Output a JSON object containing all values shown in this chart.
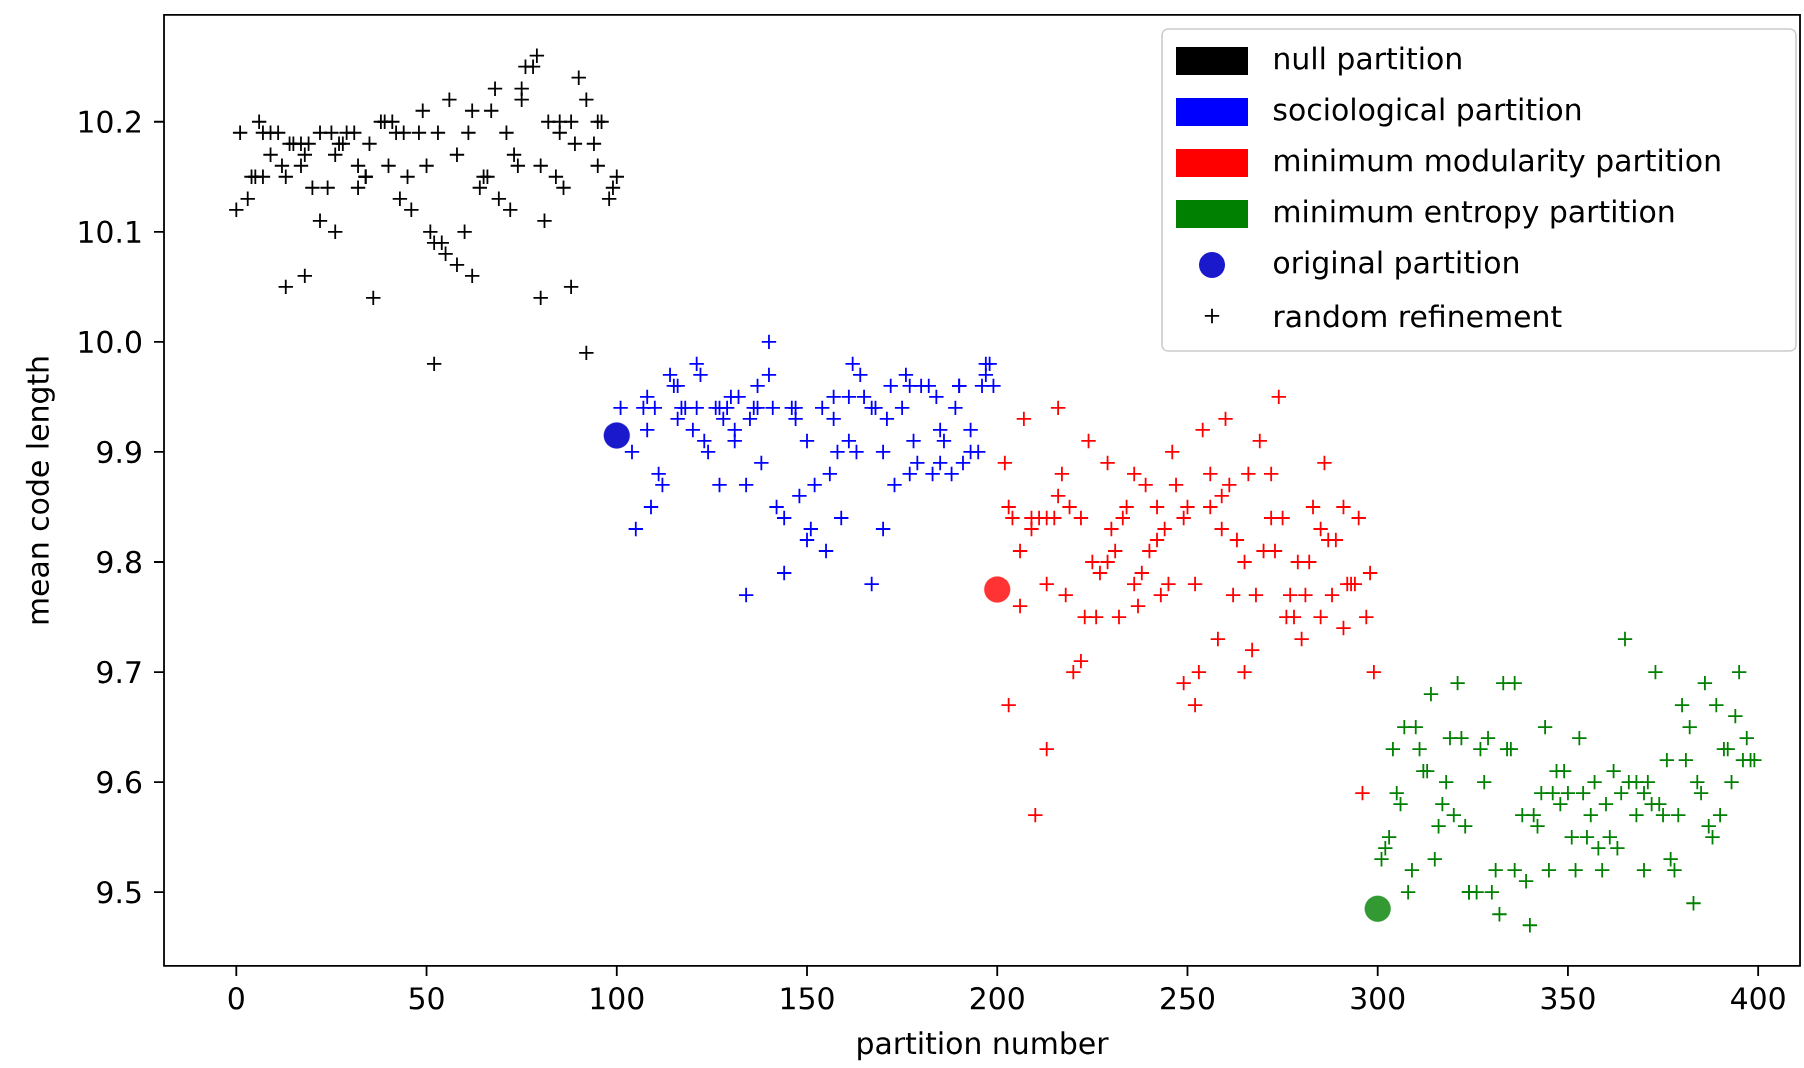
{
  "chart_data": {
    "type": "scatter",
    "xlabel": "partition number",
    "ylabel": "mean code length",
    "xlim": [
      -19,
      411
    ],
    "ylim": [
      9.433,
      10.297
    ],
    "xticks": [
      0,
      50,
      100,
      150,
      200,
      250,
      300,
      350,
      400
    ],
    "yticks": [
      9.5,
      9.6,
      9.7,
      9.8,
      9.9,
      {
        "value": 10.0,
        "label": "10.0"
      },
      10.1,
      10.2
    ],
    "legend": "top right",
    "series": [
      {
        "name": "null partition",
        "color": "#000000",
        "marker": "cross",
        "x": [
          1,
          0,
          3,
          4,
          5,
          6,
          7,
          7,
          9,
          9,
          11,
          12,
          13,
          14,
          15,
          17,
          17,
          18,
          19,
          20,
          22,
          24,
          22,
          26,
          25,
          26,
          27,
          28,
          29,
          31,
          32,
          32,
          34,
          34,
          35,
          36,
          38,
          39,
          40,
          41,
          42,
          43,
          44,
          45,
          46,
          48,
          49,
          50,
          51,
          52,
          54,
          55,
          58,
          53,
          56,
          58,
          60,
          61,
          62,
          62,
          13,
          18,
          52,
          64,
          65,
          66,
          67,
          68,
          69,
          71,
          72,
          73,
          74,
          75,
          75,
          76,
          79,
          78,
          80,
          81,
          82,
          84,
          85,
          85,
          86,
          88,
          88,
          89,
          90,
          92,
          92,
          94,
          95,
          95,
          96,
          98,
          99,
          100,
          80
        ],
        "values": [
          10.19,
          10.12,
          10.13,
          10.15,
          10.15,
          10.2,
          10.19,
          10.15,
          10.19,
          10.17,
          10.19,
          10.16,
          10.15,
          10.18,
          10.18,
          10.16,
          10.18,
          10.17,
          10.18,
          10.14,
          10.19,
          10.14,
          10.11,
          10.1,
          10.19,
          10.17,
          10.18,
          10.18,
          10.19,
          10.19,
          10.16,
          10.14,
          10.15,
          10.15,
          10.18,
          10.04,
          10.2,
          10.2,
          10.16,
          10.2,
          10.19,
          10.13,
          10.19,
          10.15,
          10.12,
          10.19,
          10.21,
          10.16,
          10.1,
          10.09,
          10.09,
          10.08,
          10.07,
          10.19,
          10.22,
          10.17,
          10.1,
          10.19,
          10.21,
          10.06,
          10.05,
          10.06,
          9.98,
          10.14,
          10.15,
          10.15,
          10.21,
          10.23,
          10.13,
          10.19,
          10.12,
          10.17,
          10.16,
          10.23,
          10.22,
          10.25,
          10.26,
          10.25,
          10.16,
          10.11,
          10.2,
          10.15,
          10.19,
          10.2,
          10.14,
          10.2,
          10.05,
          10.18,
          10.24,
          10.22,
          9.99,
          10.18,
          10.2,
          10.16,
          10.2,
          10.13,
          10.14,
          10.15,
          10.04
        ]
      },
      {
        "name": "sociological partition",
        "color": "#0000ff",
        "marker": "cross",
        "x": [
          101,
          104,
          105,
          107,
          108,
          108,
          109,
          110,
          111,
          112,
          114,
          115,
          116,
          116,
          117,
          118,
          120,
          121,
          121,
          122,
          123,
          124,
          126,
          127,
          127,
          128,
          129,
          130,
          131,
          131,
          132,
          134,
          134,
          135,
          136,
          137,
          137,
          138,
          140,
          140,
          141,
          142,
          144,
          144,
          146,
          147,
          147,
          148,
          150,
          150,
          151,
          152,
          154,
          155,
          156,
          157,
          157,
          158,
          159,
          161,
          161,
          162,
          163,
          164,
          165,
          167,
          167,
          168,
          170,
          170,
          171,
          172,
          173,
          175,
          176,
          177,
          177,
          178,
          179,
          180,
          182,
          183,
          184,
          185,
          185,
          186,
          188,
          189,
          190,
          190,
          191,
          193,
          193,
          195,
          196,
          197,
          197,
          198,
          199
        ],
        "values": [
          9.94,
          9.9,
          9.83,
          9.94,
          9.92,
          9.95,
          9.85,
          9.94,
          9.88,
          9.87,
          9.97,
          9.96,
          9.96,
          9.93,
          9.94,
          9.94,
          9.92,
          9.98,
          9.94,
          9.97,
          9.91,
          9.9,
          9.94,
          9.87,
          9.94,
          9.93,
          9.94,
          9.95,
          9.92,
          9.91,
          9.95,
          9.87,
          9.77,
          9.93,
          9.94,
          9.96,
          9.94,
          9.89,
          10.0,
          9.97,
          9.94,
          9.85,
          9.79,
          9.84,
          9.94,
          9.93,
          9.94,
          9.86,
          9.82,
          9.91,
          9.83,
          9.87,
          9.94,
          9.81,
          9.88,
          9.95,
          9.93,
          9.9,
          9.84,
          9.95,
          9.91,
          9.98,
          9.9,
          9.97,
          9.95,
          9.94,
          9.78,
          9.94,
          9.83,
          9.9,
          9.93,
          9.96,
          9.87,
          9.94,
          9.97,
          9.88,
          9.96,
          9.91,
          9.89,
          9.96,
          9.96,
          9.88,
          9.95,
          9.89,
          9.92,
          9.91,
          9.88,
          9.94,
          9.96,
          9.96,
          9.89,
          9.92,
          9.9,
          9.9,
          9.96,
          9.97,
          9.98,
          9.98,
          9.96
        ]
      },
      {
        "name": "minimum modularity partition",
        "color": "#ff0000",
        "marker": "cross",
        "x": [
          207,
          216,
          202,
          203,
          204,
          206,
          209,
          209,
          211,
          213,
          215,
          216,
          217,
          219,
          222,
          224,
          229,
          225,
          227,
          229,
          231,
          230,
          233,
          234,
          236,
          239,
          232,
          223,
          226,
          213,
          218,
          206,
          203,
          222,
          220,
          237,
          236,
          238,
          240,
          242,
          242,
          243,
          244,
          245,
          246,
          247,
          249,
          250,
          252,
          253,
          249,
          252,
          254,
          256,
          256,
          258,
          259,
          259,
          260,
          261,
          263,
          262,
          265,
          265,
          266,
          268,
          267,
          269,
          270,
          272,
          273,
          272,
          274,
          275,
          277,
          276,
          278,
          279,
          280,
          282,
          281,
          283,
          285,
          285,
          286,
          287,
          288,
          289,
          291,
          291,
          292,
          293,
          294,
          295,
          297,
          298,
          299,
          213,
          210,
          296
        ],
        "values": [
          9.93,
          9.94,
          9.89,
          9.85,
          9.84,
          9.81,
          9.83,
          9.84,
          9.84,
          9.84,
          9.84,
          9.86,
          9.88,
          9.85,
          9.84,
          9.91,
          9.89,
          9.8,
          9.79,
          9.8,
          9.81,
          9.83,
          9.84,
          9.85,
          9.88,
          9.87,
          9.75,
          9.75,
          9.75,
          9.78,
          9.77,
          9.76,
          9.67,
          9.71,
          9.7,
          9.76,
          9.78,
          9.79,
          9.81,
          9.82,
          9.85,
          9.77,
          9.83,
          9.78,
          9.9,
          9.87,
          9.84,
          9.85,
          9.78,
          9.7,
          9.69,
          9.67,
          9.92,
          9.88,
          9.85,
          9.73,
          9.86,
          9.83,
          9.93,
          9.87,
          9.82,
          9.77,
          9.7,
          9.8,
          9.88,
          9.77,
          9.72,
          9.91,
          9.81,
          9.88,
          9.81,
          9.84,
          9.95,
          9.84,
          9.77,
          9.75,
          9.75,
          9.8,
          9.73,
          9.8,
          9.77,
          9.85,
          9.75,
          9.83,
          9.89,
          9.82,
          9.77,
          9.82,
          9.74,
          9.85,
          9.78,
          9.78,
          9.78,
          9.84,
          9.75,
          9.79,
          9.7,
          9.63,
          9.57,
          9.59
        ]
      },
      {
        "name": "minimum entropy partition",
        "color": "#008000",
        "marker": "cross",
        "x": [
          365,
          373,
          321,
          314,
          333,
          336,
          386,
          395,
          380,
          389,
          394,
          310,
          307,
          344,
          382,
          304,
          311,
          319,
          322,
          327,
          329,
          334,
          335,
          353,
          397,
          391,
          392,
          376,
          381,
          396,
          398,
          399,
          312,
          313,
          318,
          328,
          305,
          306,
          317,
          320,
          316,
          323,
          338,
          341,
          342,
          343,
          347,
          349,
          346,
          348,
          350,
          354,
          357,
          356,
          360,
          362,
          364,
          366,
          368,
          371,
          370,
          372,
          374,
          375,
          379,
          368,
          384,
          385,
          390,
          393,
          387,
          388,
          351,
          355,
          358,
          361,
          363,
          377,
          378,
          370,
          303,
          302,
          301,
          315,
          309,
          308,
          324,
          326,
          324,
          330,
          331,
          336,
          339,
          345,
          352,
          359,
          332,
          340,
          383
        ],
        "values": [
          9.73,
          9.7,
          9.69,
          9.68,
          9.69,
          9.69,
          9.69,
          9.7,
          9.67,
          9.67,
          9.66,
          9.65,
          9.65,
          9.65,
          9.65,
          9.63,
          9.63,
          9.64,
          9.64,
          9.63,
          9.64,
          9.63,
          9.63,
          9.64,
          9.64,
          9.63,
          9.63,
          9.62,
          9.62,
          9.62,
          9.62,
          9.62,
          9.61,
          9.61,
          9.6,
          9.6,
          9.59,
          9.58,
          9.58,
          9.57,
          9.56,
          9.56,
          9.57,
          9.57,
          9.56,
          9.59,
          9.61,
          9.61,
          9.59,
          9.58,
          9.59,
          9.59,
          9.6,
          9.57,
          9.58,
          9.61,
          9.59,
          9.6,
          9.6,
          9.6,
          9.59,
          9.58,
          9.58,
          9.57,
          9.57,
          9.57,
          9.6,
          9.59,
          9.57,
          9.6,
          9.56,
          9.55,
          9.55,
          9.55,
          9.54,
          9.55,
          9.54,
          9.53,
          9.52,
          9.52,
          9.55,
          9.54,
          9.53,
          9.53,
          9.52,
          9.5,
          9.5,
          9.5,
          9.5,
          9.5,
          9.52,
          9.52,
          9.51,
          9.52,
          9.52,
          9.52,
          9.48,
          9.47,
          9.49
        ]
      },
      {
        "name": "original partition",
        "color": "#333333",
        "marker": "circle",
        "x": [
          100,
          200,
          300
        ],
        "values": [
          9.915,
          9.775,
          9.485
        ],
        "colors": [
          "#1a1acc",
          "#ff3333",
          "#339933"
        ]
      },
      {
        "name": "random refinement",
        "color": "#000000",
        "marker": "cross"
      }
    ]
  }
}
